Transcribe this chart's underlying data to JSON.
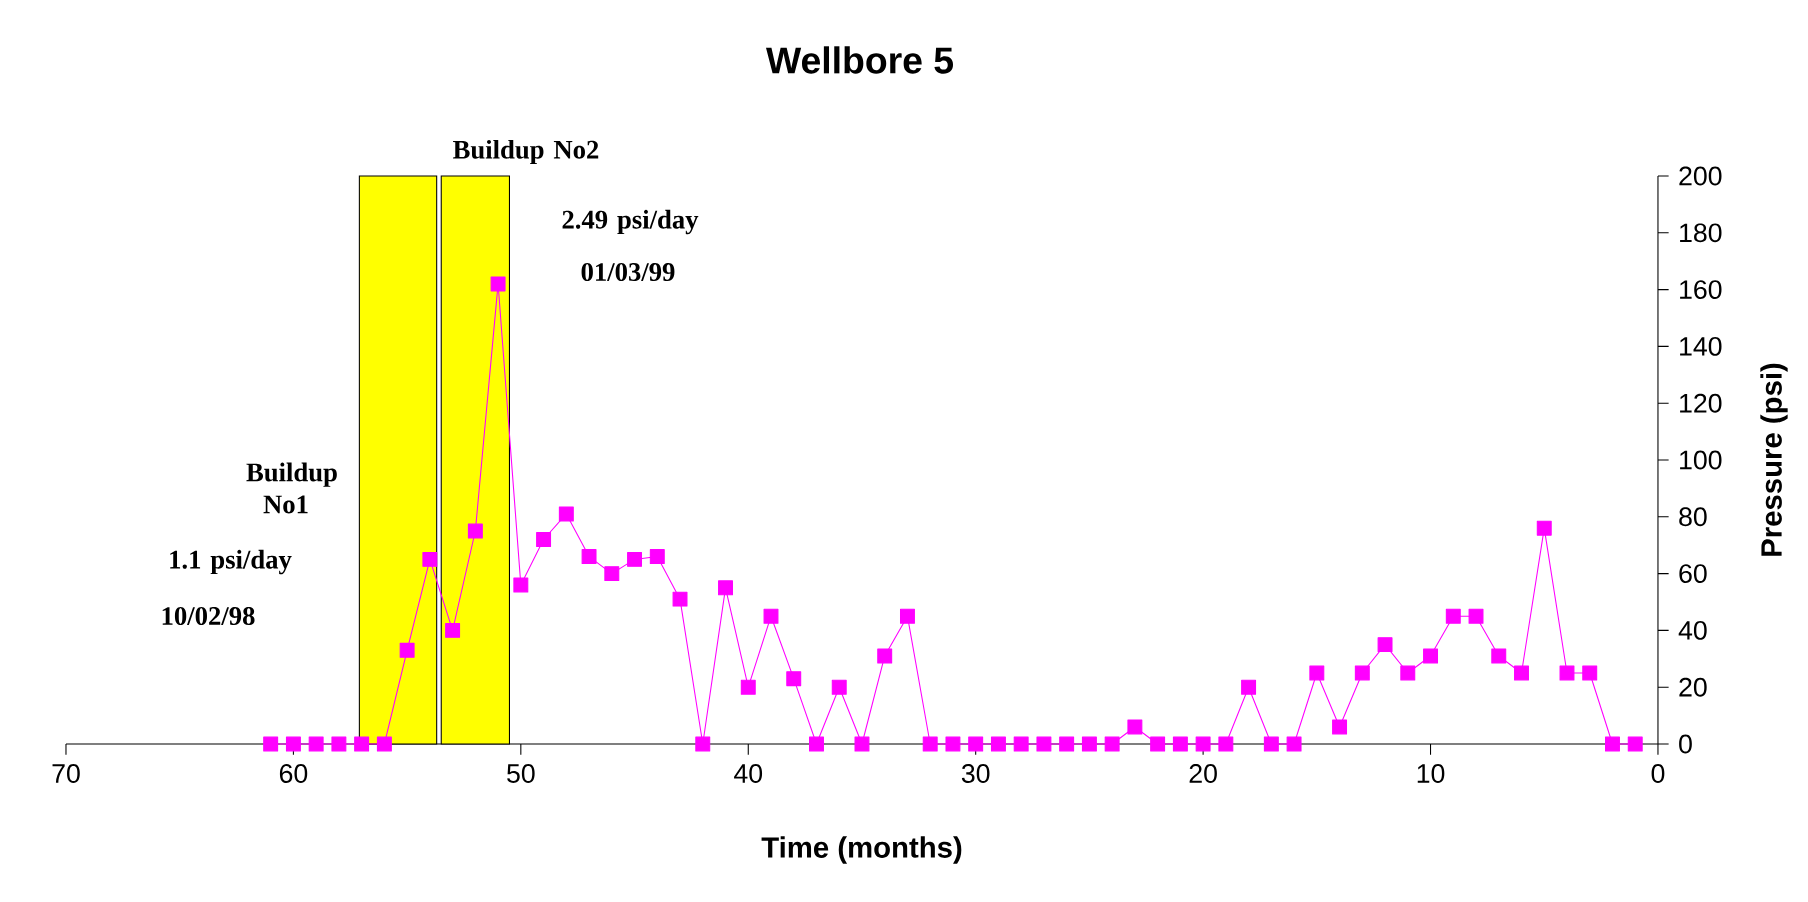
{
  "chart_data": {
    "type": "line",
    "title": "Wellbore 5",
    "xlabel": "Time (months)",
    "ylabel": "Pressure (psi)",
    "x": [
      61,
      60,
      59,
      58,
      57,
      56,
      55,
      54,
      53,
      52,
      51,
      50,
      49,
      48,
      47,
      46,
      45,
      44,
      43,
      42,
      41,
      40,
      39,
      38,
      37,
      36,
      35,
      34,
      33,
      32,
      31,
      30,
      29,
      28,
      27,
      26,
      25,
      24,
      23,
      22,
      21,
      20,
      19,
      18,
      17,
      16,
      15,
      14,
      13,
      12,
      11,
      10,
      9,
      8,
      7,
      6,
      5,
      4,
      3,
      2,
      1
    ],
    "series": [
      {
        "color": "#ff00ff",
        "values": [
          0,
          0,
          0,
          0,
          0,
          0,
          33,
          65,
          40,
          75,
          162,
          56,
          72,
          81,
          66,
          60,
          65,
          66,
          51,
          0,
          55,
          20,
          45,
          23,
          0,
          20,
          0,
          31,
          45,
          0,
          0,
          0,
          0,
          0,
          0,
          0,
          0,
          0,
          6,
          0,
          0,
          0,
          0,
          20,
          0,
          0,
          25,
          6,
          25,
          35,
          25,
          31,
          45,
          45,
          31,
          25,
          76,
          25,
          25,
          0,
          0
        ]
      }
    ],
    "xlim": [
      70,
      0
    ],
    "xticks": [
      70,
      60,
      50,
      40,
      30,
      20,
      10,
      0
    ],
    "ylim": [
      0,
      200
    ],
    "yticks": [
      0,
      20,
      40,
      60,
      80,
      100,
      120,
      140,
      160,
      180,
      200
    ],
    "marker": "square",
    "line_style": "solid",
    "bands": [
      {
        "axis": "x",
        "from": 57.1,
        "to": 53.7,
        "color": "#ffff00"
      },
      {
        "axis": "x",
        "from": 53.5,
        "to": 50.5,
        "color": "#ffff00"
      }
    ],
    "annotations": [
      "Buildup No1",
      "1.1 psi/day",
      "10/02/98",
      "Buildup No2",
      "2.49 psi/day",
      "01/03/99"
    ]
  }
}
